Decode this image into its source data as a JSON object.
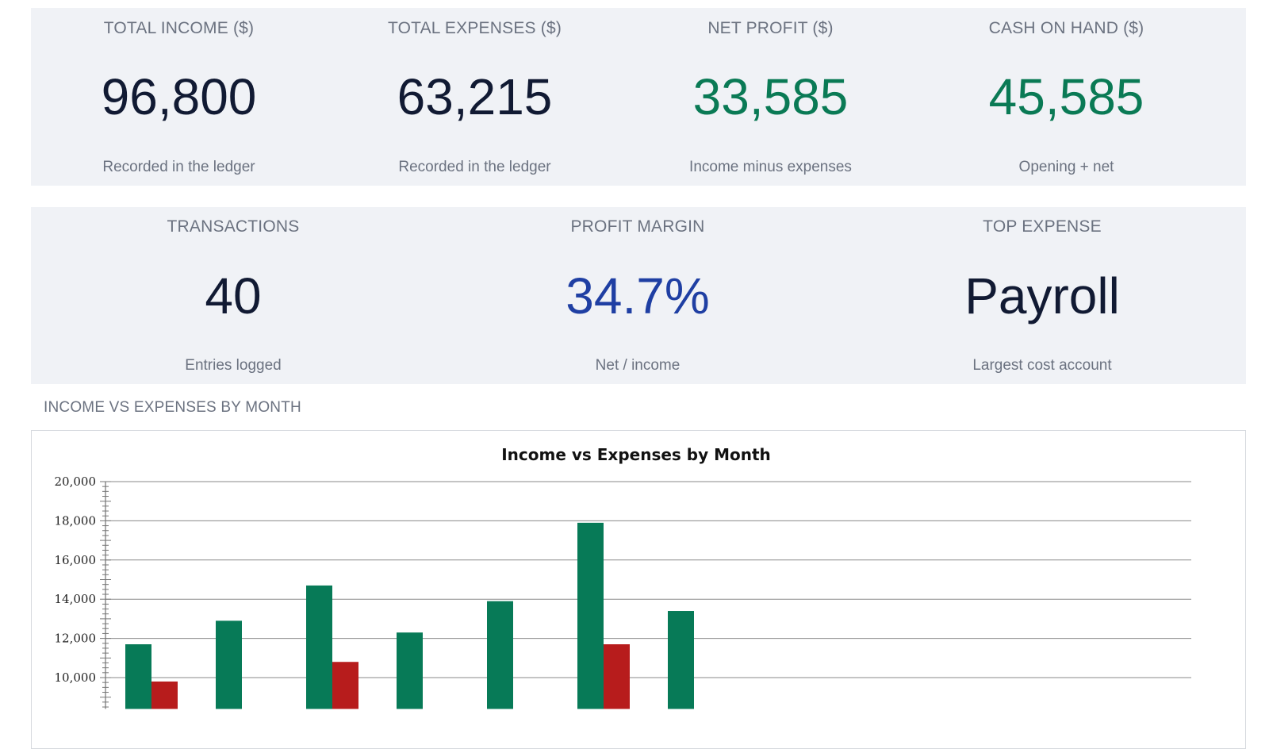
{
  "kpi_row1": [
    {
      "label": "TOTAL INCOME ($)",
      "value": "96,800",
      "sub": "Recorded in the ledger",
      "color": "#111a33"
    },
    {
      "label": "TOTAL EXPENSES ($)",
      "value": "63,215",
      "sub": "Recorded in the ledger",
      "color": "#111a33"
    },
    {
      "label": "NET PROFIT ($)",
      "value": "33,585",
      "sub": "Income minus expenses",
      "color": "#0a7a55"
    },
    {
      "label": "CASH ON HAND ($)",
      "value": "45,585",
      "sub": "Opening + net",
      "color": "#0a7a55"
    }
  ],
  "kpi_row2": [
    {
      "label": "TRANSACTIONS",
      "value": "40",
      "sub": "Entries logged",
      "color": "#111a33"
    },
    {
      "label": "PROFIT MARGIN",
      "value": "34.7%",
      "sub": "Net / income",
      "color": "#1f3fa3"
    },
    {
      "label": "TOP EXPENSE",
      "value": "Payroll",
      "sub": "Largest cost account",
      "color": "#111a33"
    }
  ],
  "section": {
    "title": "INCOME VS EXPENSES BY MONTH"
  },
  "chart_data": {
    "type": "bar",
    "title": "Income vs Expenses by Month",
    "xlabel": "",
    "ylabel": "",
    "ylim": [
      8400,
      20000
    ],
    "yticks": [
      10000,
      12000,
      14000,
      16000,
      18000,
      20000
    ],
    "ytick_labels": [
      "10,000",
      "12,000",
      "14,000",
      "16,000",
      "18,000",
      "20,000"
    ],
    "grid": true,
    "series": [
      {
        "values": [
          11700,
          12900,
          14700,
          12300,
          13900,
          17900,
          13400
        ],
        "color": "#077a57"
      },
      {
        "values": [
          9800,
          null,
          10800,
          null,
          null,
          11700,
          null
        ],
        "color": "#b71c1c"
      }
    ]
  }
}
